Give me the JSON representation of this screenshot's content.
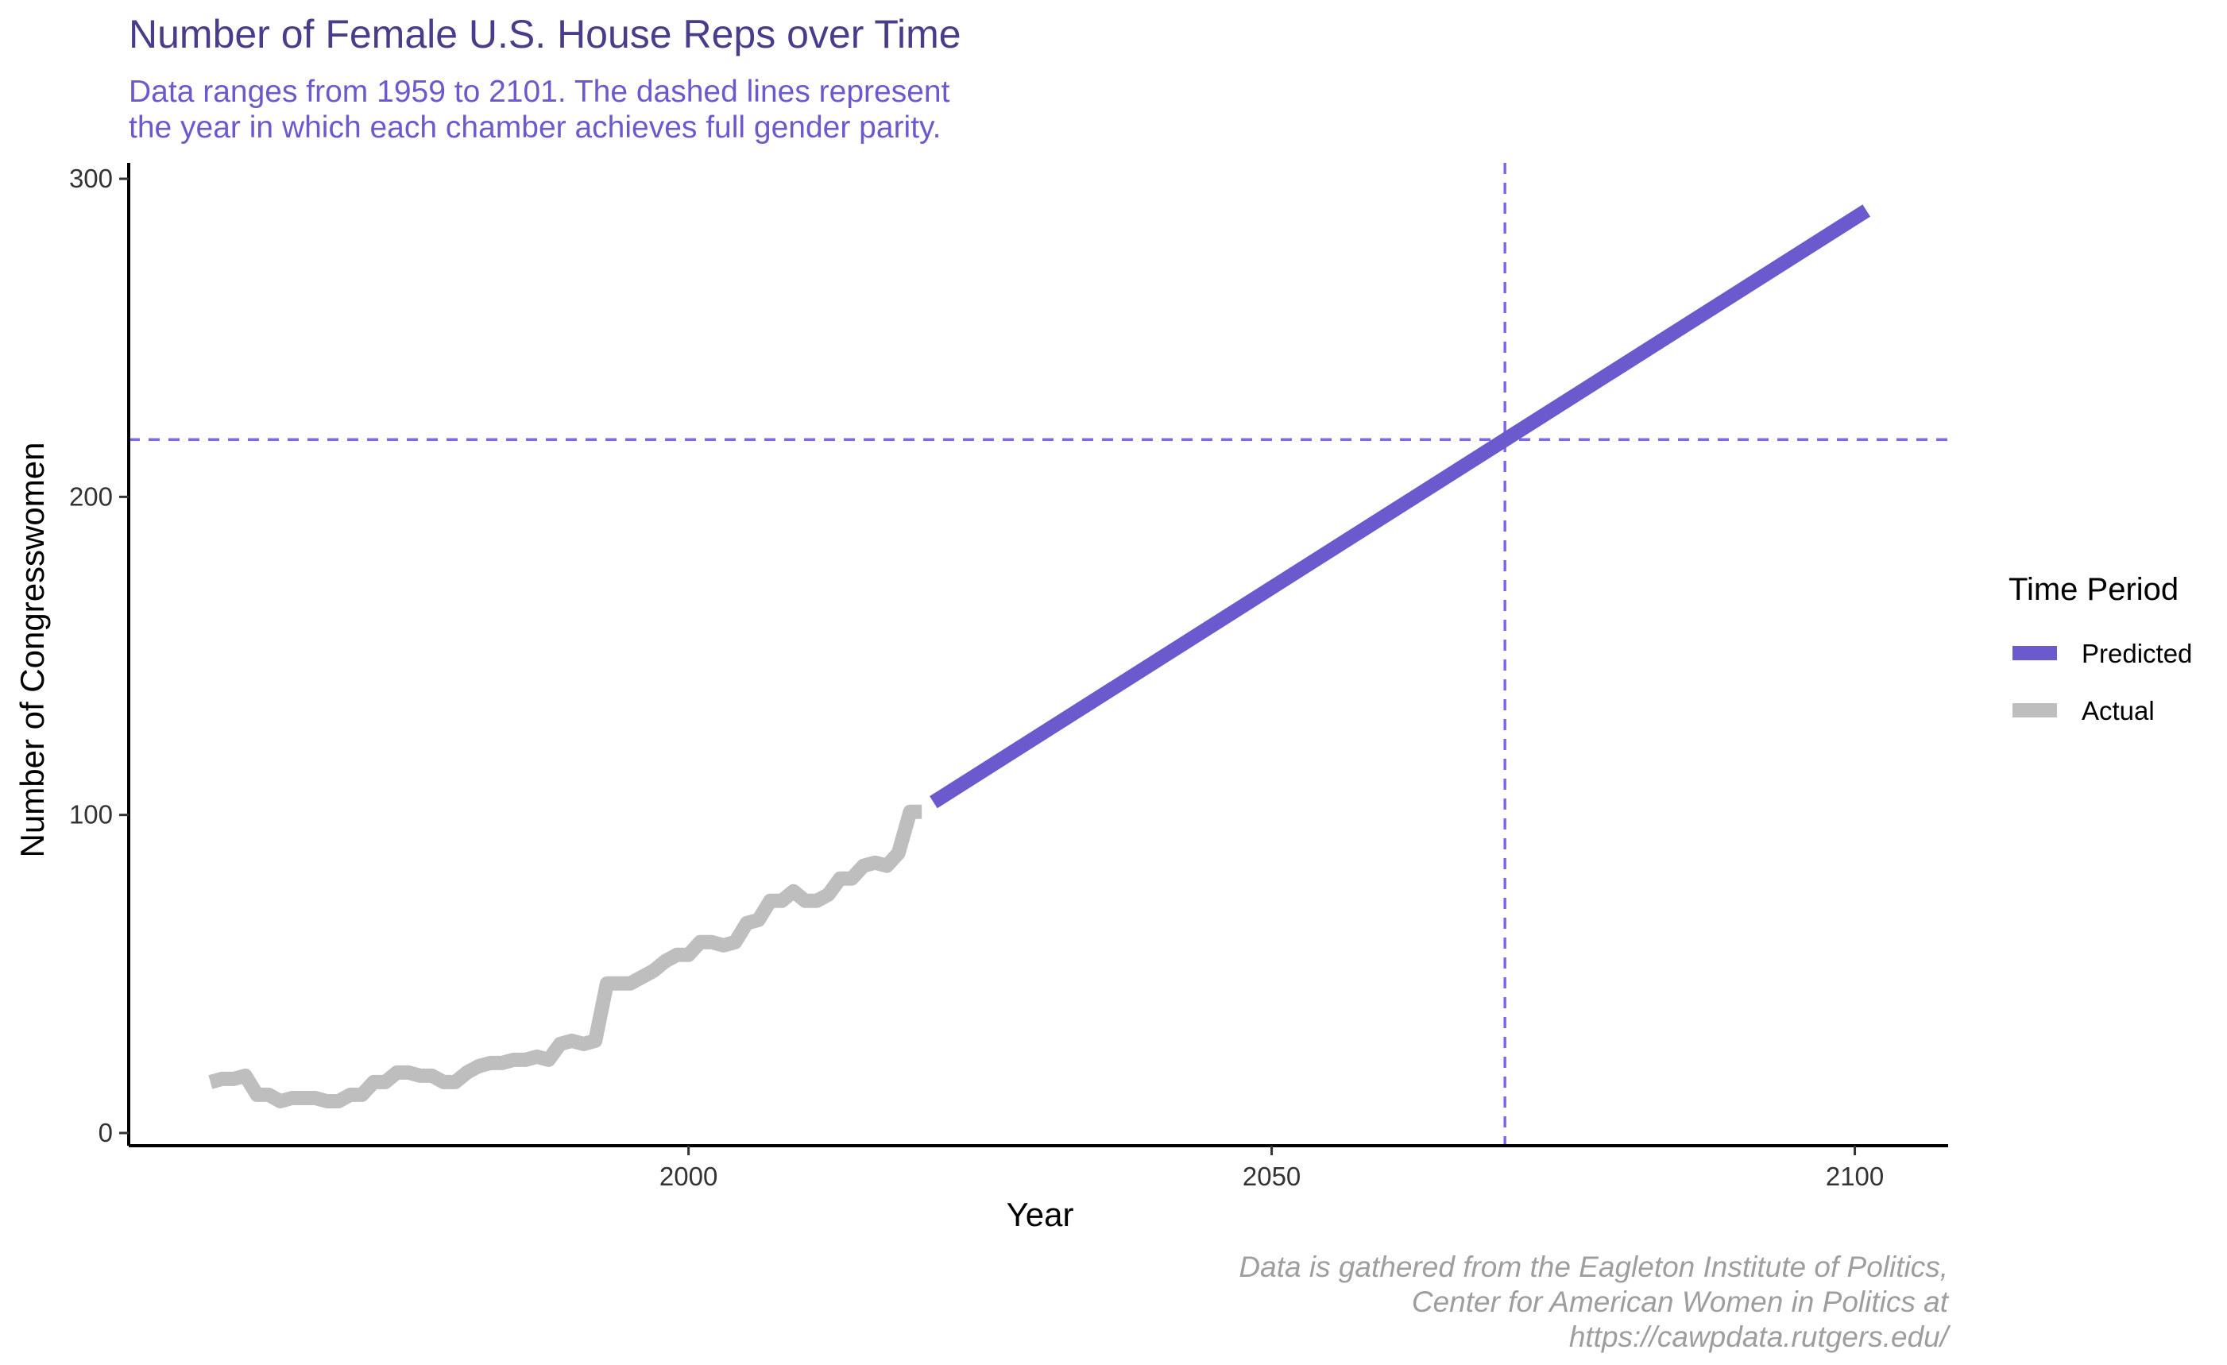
{
  "colors": {
    "predicted": "#6A5ACD",
    "actual": "#BEBEBE",
    "refline": "#7B68EE",
    "title": "#483D8B",
    "subtitle": "#6A5ACD",
    "caption": "#9E9E9E"
  },
  "chart_data": {
    "type": "line",
    "title": "Number of Female U.S. House Reps over Time",
    "subtitle": [
      "Data ranges from 1959 to 2101. The dashed lines represent",
      "the year in which each chamber achieves full gender parity."
    ],
    "xlabel": "Year",
    "ylabel": "Number of Congresswomen",
    "xlim": [
      1952,
      2108
    ],
    "ylim": [
      -4,
      305
    ],
    "x_ticks": [
      2000,
      2050,
      2100
    ],
    "y_ticks": [
      0,
      100,
      200,
      300
    ],
    "grid": false,
    "legend": {
      "title": "Time Period",
      "position": "right",
      "entries": [
        "Predicted",
        "Actual"
      ]
    },
    "reference_lines": {
      "vertical_x": 2070,
      "horizontal_y": 218
    },
    "series": [
      {
        "name": "Actual",
        "x": [
          1959,
          1960,
          1961,
          1962,
          1963,
          1964,
          1965,
          1966,
          1967,
          1968,
          1969,
          1970,
          1971,
          1972,
          1973,
          1974,
          1975,
          1976,
          1977,
          1978,
          1979,
          1980,
          1981,
          1982,
          1983,
          1984,
          1985,
          1986,
          1987,
          1988,
          1989,
          1990,
          1991,
          1992,
          1993,
          1994,
          1995,
          1996,
          1997,
          1998,
          1999,
          2000,
          2001,
          2002,
          2003,
          2004,
          2005,
          2006,
          2007,
          2008,
          2009,
          2010,
          2011,
          2012,
          2013,
          2014,
          2015,
          2016,
          2017,
          2018,
          2019,
          2020
        ],
        "values": [
          16,
          17,
          17,
          18,
          12,
          12,
          10,
          11,
          11,
          11,
          10,
          10,
          12,
          12,
          16,
          16,
          19,
          19,
          18,
          18,
          16,
          16,
          19,
          21,
          22,
          22,
          23,
          23,
          24,
          23,
          28,
          29,
          28,
          29,
          47,
          47,
          47,
          49,
          51,
          54,
          56,
          56,
          60,
          60,
          59,
          60,
          66,
          67,
          73,
          73,
          76,
          73,
          73,
          75,
          80,
          80,
          84,
          85,
          84,
          88,
          101,
          101
        ]
      },
      {
        "name": "Predicted",
        "x": [
          2021,
          2101
        ],
        "values": [
          104,
          290
        ]
      }
    ]
  },
  "caption": [
    "Data is gathered from the Eagleton Institute of Politics,",
    "Center for American Women in Politics at",
    "https://cawpdata.rutgers.edu/"
  ]
}
